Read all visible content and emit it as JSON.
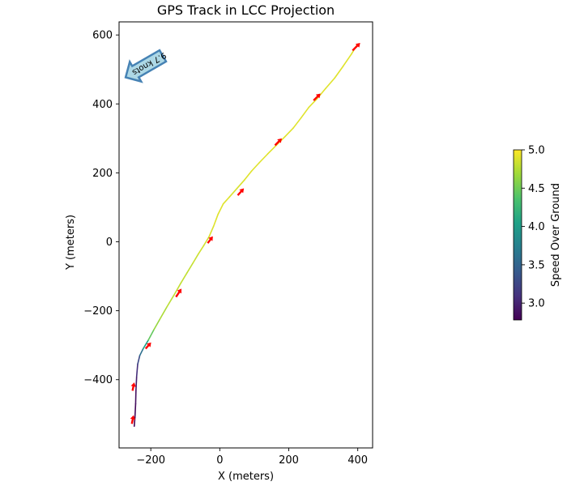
{
  "colors": {
    "background": "#ffffff",
    "axis": "#000000",
    "arrow_marker": "#ff0000",
    "wind_arrow_fill": "#add8e6",
    "wind_arrow_edge": "#4682b4",
    "colormap": "viridis"
  },
  "chart_data": {
    "type": "line",
    "title": "GPS Track in LCC Projection",
    "xlabel": "X (meters)",
    "ylabel": "Y (meters)",
    "xlim": [
      -292,
      443
    ],
    "ylim": [
      -598,
      638
    ],
    "xticks": [
      -200,
      0,
      200,
      400
    ],
    "yticks": [
      -400,
      -200,
      0,
      200,
      400,
      600
    ],
    "grid": false,
    "aspect": "equal",
    "track": {
      "x": [
        -248,
        -246,
        -244,
        -243,
        -241,
        -238,
        -232,
        -222,
        -207,
        -191,
        -174,
        -154,
        -133,
        -113,
        -95,
        -78,
        -62,
        -46,
        -31,
        -18,
        -5,
        10,
        28,
        50,
        72,
        92,
        115,
        139,
        164,
        189,
        213,
        236,
        258,
        282,
        307,
        333,
        358,
        382,
        397
      ],
      "y": [
        -535,
        -510,
        -470,
        -430,
        -390,
        -355,
        -330,
        -310,
        -285,
        -255,
        -225,
        -190,
        -155,
        -120,
        -90,
        -62,
        -35,
        -10,
        15,
        45,
        80,
        110,
        130,
        155,
        180,
        205,
        230,
        255,
        280,
        305,
        330,
        360,
        390,
        415,
        445,
        475,
        510,
        545,
        570
      ],
      "sog": [
        2.8,
        2.8,
        2.85,
        2.9,
        3.0,
        3.15,
        3.4,
        3.8,
        4.3,
        4.6,
        4.7,
        4.75,
        4.8,
        4.8,
        4.8,
        4.8,
        4.85,
        4.85,
        4.85,
        4.9,
        4.9,
        4.9,
        4.9,
        4.85,
        4.9,
        4.9,
        4.9,
        4.9,
        4.9,
        4.9,
        4.9,
        4.9,
        4.9,
        4.9,
        4.9,
        4.9,
        4.9,
        4.9,
        4.9
      ]
    },
    "direction_arrows": [
      {
        "x": -255,
        "y": -528,
        "dx": 5,
        "dy": 25
      },
      {
        "x": -253,
        "y": -432,
        "dx": 5,
        "dy": 24
      },
      {
        "x": -215,
        "y": -310,
        "dx": 16,
        "dy": 18
      },
      {
        "x": -127,
        "y": -160,
        "dx": 16,
        "dy": 24
      },
      {
        "x": -35,
        "y": -4,
        "dx": 15,
        "dy": 20
      },
      {
        "x": 52,
        "y": 135,
        "dx": 18,
        "dy": 20
      },
      {
        "x": 160,
        "y": 280,
        "dx": 20,
        "dy": 20
      },
      {
        "x": 272,
        "y": 410,
        "dx": 20,
        "dy": 20
      },
      {
        "x": 385,
        "y": 555,
        "dx": 22,
        "dy": 22
      }
    ],
    "wind_annotation": {
      "text": "9.7 knots",
      "direction_deg": 210
    },
    "colorbar": {
      "label": "Speed Over Ground",
      "range": [
        2.78,
        5.0
      ],
      "ticks": [
        "5.0",
        "4.5",
        "4.0",
        "3.5",
        "3.0"
      ],
      "tick_values": [
        5.0,
        4.5,
        4.0,
        3.5,
        3.0
      ]
    }
  }
}
